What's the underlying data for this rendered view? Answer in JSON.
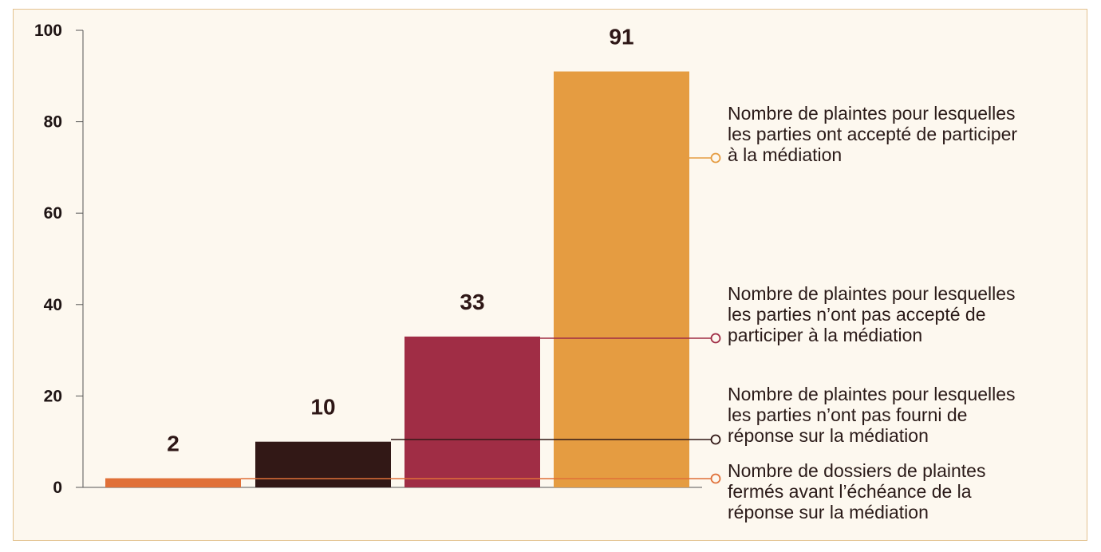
{
  "chart_data": {
    "type": "bar",
    "categories": [
      "Nombre de dossiers de plaintes fermés avant l’échéance de la réponse sur la médiation",
      "Nombre de plaintes pour lesquelles les parties n’ont pas fourni de réponse sur la médiation",
      "Nombre de plaintes pour lesquelles les parties n’ont pas accepté de participer à la médiation",
      "Nombre de plaintes pour lesquelles les parties ont accepté de participer à la médiation"
    ],
    "values": [
      2,
      10,
      33,
      91
    ],
    "value_labels": [
      "2",
      "10",
      "33",
      "91"
    ],
    "colors": [
      "#e07038",
      "#321816",
      "#a02d45",
      "#e59c41"
    ],
    "ylim": [
      0,
      100
    ],
    "yticks": [
      0,
      20,
      40,
      60,
      80,
      100
    ],
    "ytick_labels": [
      "0",
      "20",
      "40",
      "60",
      "80",
      "100"
    ],
    "legend": [
      {
        "lines": [
          "Nombre de plaintes pour lesquelles",
          "les parties ont accepté de participer",
          "à la médiation"
        ],
        "color": "#e59c41",
        "bar_index": 3
      },
      {
        "lines": [
          "Nombre de plaintes pour lesquelles",
          "les parties n’ont pas accepté de",
          "participer à la médiation"
        ],
        "color": "#a02d45",
        "bar_index": 2
      },
      {
        "lines": [
          "Nombre de plaintes pour lesquelles",
          "les parties n’ont pas fourni de",
          "réponse sur la médiation"
        ],
        "color": "#321816",
        "bar_index": 1
      },
      {
        "lines": [
          "Nombre de dossiers de plaintes",
          "fermés avant l’échéance de la",
          "réponse sur la médiation"
        ],
        "color": "#e07038",
        "bar_index": 0
      }
    ],
    "legend_placement": "right",
    "grid": false
  }
}
